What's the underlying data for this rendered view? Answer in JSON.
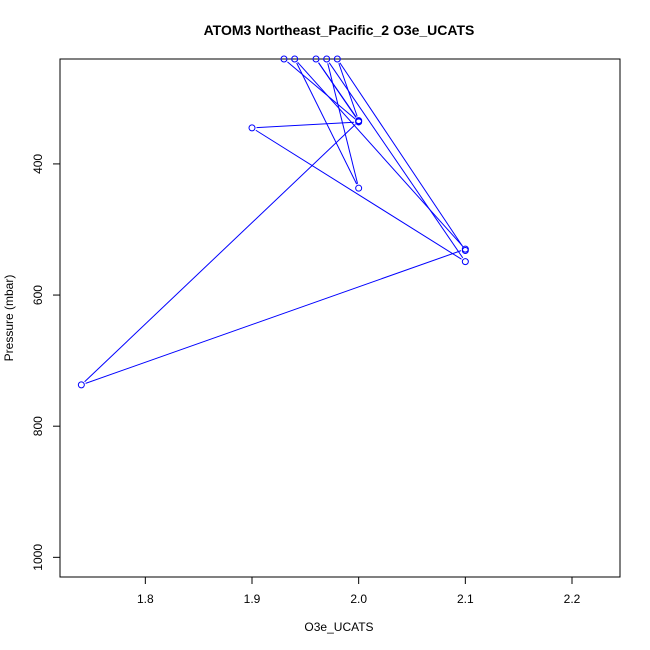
{
  "chart_data": {
    "type": "line",
    "title": "ATOM3 Northeast_Pacific_2 O3e_UCATS",
    "xlabel": "O3e_UCATS",
    "ylabel": "Pressure (mbar)",
    "xlim": [
      1.72,
      2.245
    ],
    "ylim": [
      1030,
      240
    ],
    "y_reversed": true,
    "x_ticks": [
      1.8,
      1.9,
      2.0,
      2.1,
      2.2
    ],
    "x_tick_labels": [
      "1.8",
      "1.9",
      "2.0",
      "2.1",
      "2.2"
    ],
    "y_ticks": [
      400,
      600,
      800,
      1000
    ],
    "y_tick_labels": [
      "400",
      "600",
      "800",
      "1000"
    ],
    "grid": false,
    "legend": "none",
    "line_color": "#0000ff",
    "series": [
      {
        "points": [
          [
            1.93,
            240
          ],
          [
            2.0,
            336
          ],
          [
            1.9,
            345
          ],
          [
            2.1,
            549
          ],
          [
            1.97,
            240
          ],
          [
            2.0,
            437
          ],
          [
            1.94,
            240
          ],
          [
            2.1,
            530
          ],
          [
            1.74,
            737
          ],
          [
            2.0,
            335
          ],
          [
            1.96,
            240
          ],
          [
            2.0,
            334
          ],
          [
            1.98,
            240
          ],
          [
            2.1,
            532
          ]
        ]
      }
    ]
  }
}
